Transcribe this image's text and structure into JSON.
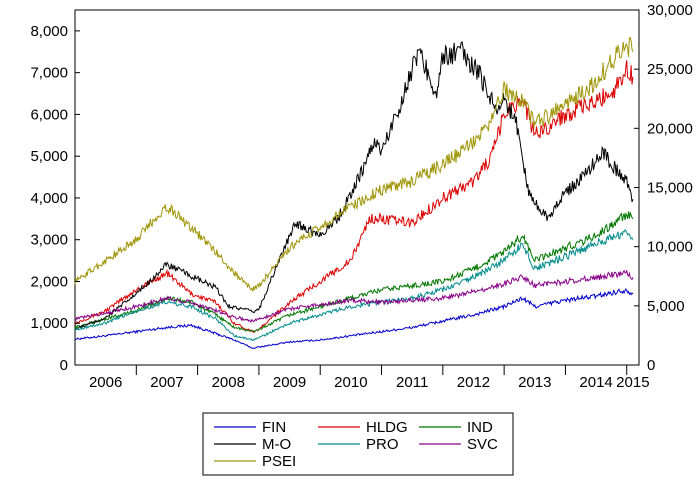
{
  "chart_data": {
    "type": "line",
    "title": "",
    "xlabel": "",
    "ylabel": "",
    "x_range": [
      2006.0,
      2015.2
    ],
    "x_ticks": [
      "2006",
      "2007",
      "2008",
      "2009",
      "2010",
      "2011",
      "2012",
      "2013",
      "2014",
      "2015"
    ],
    "left_axis": {
      "ylim": [
        0,
        8500
      ],
      "ticks": [
        0,
        1000,
        2000,
        3000,
        4000,
        5000,
        6000,
        7000,
        8000
      ],
      "tick_labels": [
        "0",
        "1,000",
        "2,000",
        "3,000",
        "4,000",
        "5,000",
        "6,000",
        "7,000",
        "8,000"
      ]
    },
    "right_axis": {
      "ylim": [
        0,
        30000
      ],
      "ticks": [
        0,
        5000,
        10000,
        15000,
        20000,
        25000,
        30000
      ],
      "tick_labels": [
        "0",
        "5,000",
        "10,000",
        "15,000",
        "20,000",
        "25,000",
        "30,000"
      ]
    },
    "legend": {
      "placement": "bottom-center",
      "columns": 3
    },
    "series": [
      {
        "name": "FIN",
        "color": "#0000cc",
        "axis": "left",
        "x": [
          2006.0,
          2006.5,
          2007.0,
          2007.5,
          2007.9,
          2008.3,
          2008.6,
          2008.9,
          2009.0,
          2009.5,
          2010.0,
          2010.5,
          2011.0,
          2011.5,
          2012.0,
          2012.5,
          2013.0,
          2013.3,
          2013.5,
          2014.0,
          2014.5,
          2015.0,
          2015.1
        ],
        "values": [
          620,
          700,
          800,
          900,
          950,
          750,
          600,
          400,
          430,
          550,
          600,
          700,
          800,
          900,
          1050,
          1200,
          1400,
          1600,
          1400,
          1550,
          1650,
          1800,
          1700
        ]
      },
      {
        "name": "HLDG",
        "color": "#dd0000",
        "axis": "left",
        "x": [
          2006.0,
          2006.5,
          2007.0,
          2007.5,
          2007.9,
          2008.3,
          2008.6,
          2008.9,
          2009.0,
          2009.5,
          2010.0,
          2010.5,
          2010.8,
          2011.0,
          2011.5,
          2012.0,
          2012.5,
          2012.8,
          2013.0,
          2013.3,
          2013.5,
          2014.0,
          2014.5,
          2014.8,
          2015.0,
          2015.1
        ],
        "values": [
          1000,
          1300,
          1800,
          2200,
          1700,
          1500,
          1000,
          800,
          850,
          1500,
          2000,
          2500,
          3500,
          3500,
          3400,
          4000,
          4400,
          5000,
          6000,
          6400,
          5500,
          6000,
          6300,
          6600,
          7100,
          6900
        ]
      },
      {
        "name": "IND",
        "color": "#007700",
        "axis": "left",
        "x": [
          2006.0,
          2006.5,
          2007.0,
          2007.5,
          2007.9,
          2008.3,
          2008.6,
          2008.9,
          2009.0,
          2009.5,
          2010.0,
          2010.5,
          2011.0,
          2011.5,
          2012.0,
          2012.5,
          2013.0,
          2013.3,
          2013.5,
          2014.0,
          2014.5,
          2015.0,
          2015.1
        ],
        "values": [
          900,
          1100,
          1300,
          1600,
          1500,
          1200,
          900,
          800,
          850,
          1200,
          1400,
          1600,
          1800,
          1900,
          2000,
          2300,
          2700,
          3100,
          2500,
          2800,
          3100,
          3600,
          3500
        ]
      },
      {
        "name": "M-O",
        "color": "#000000",
        "axis": "right",
        "x": [
          2006.0,
          2006.5,
          2007.0,
          2007.3,
          2007.5,
          2007.9,
          2008.3,
          2008.5,
          2008.9,
          2009.0,
          2009.3,
          2009.6,
          2010.0,
          2010.3,
          2010.6,
          2010.9,
          2011.0,
          2011.3,
          2011.6,
          2011.9,
          2012.0,
          2012.3,
          2012.6,
          2012.9,
          2013.0,
          2013.2,
          2013.4,
          2013.7,
          2014.0,
          2014.3,
          2014.6,
          2014.9,
          2015.0,
          2015.1
        ],
        "values": [
          3000,
          4000,
          6000,
          7500,
          8500,
          7500,
          6500,
          5000,
          4500,
          4700,
          8500,
          12000,
          11000,
          12500,
          15500,
          19000,
          18000,
          22000,
          26500,
          23000,
          26000,
          26500,
          24500,
          21500,
          22500,
          20500,
          14500,
          12500,
          14500,
          16000,
          18000,
          16000,
          15500,
          14000
        ]
      },
      {
        "name": "PRO",
        "color": "#008b8b",
        "axis": "left",
        "x": [
          2006.0,
          2006.5,
          2007.0,
          2007.5,
          2007.9,
          2008.3,
          2008.6,
          2008.9,
          2009.0,
          2009.5,
          2010.0,
          2010.5,
          2011.0,
          2011.5,
          2012.0,
          2012.5,
          2013.0,
          2013.3,
          2013.5,
          2014.0,
          2014.5,
          2015.0,
          2015.1
        ],
        "values": [
          850,
          1000,
          1300,
          1500,
          1400,
          1100,
          700,
          600,
          650,
          1000,
          1200,
          1400,
          1500,
          1600,
          1800,
          2100,
          2500,
          2900,
          2300,
          2600,
          2900,
          3200,
          3000
        ]
      },
      {
        "name": "SVC",
        "color": "#880088",
        "axis": "left",
        "x": [
          2006.0,
          2006.5,
          2007.0,
          2007.5,
          2007.9,
          2008.3,
          2008.6,
          2008.9,
          2009.0,
          2009.5,
          2010.0,
          2010.5,
          2011.0,
          2011.5,
          2012.0,
          2012.5,
          2013.0,
          2013.3,
          2013.5,
          2014.0,
          2014.5,
          2015.0,
          2015.1
        ],
        "values": [
          1100,
          1250,
          1400,
          1600,
          1500,
          1300,
          1150,
          1050,
          1100,
          1350,
          1450,
          1550,
          1500,
          1550,
          1600,
          1750,
          1950,
          2100,
          1900,
          2000,
          2100,
          2200,
          2100
        ]
      },
      {
        "name": "PSEI",
        "color": "#a0960a",
        "axis": "left",
        "x": [
          2006.0,
          2006.5,
          2007.0,
          2007.3,
          2007.5,
          2007.9,
          2008.3,
          2008.6,
          2008.9,
          2009.0,
          2009.5,
          2010.0,
          2010.5,
          2011.0,
          2011.5,
          2012.0,
          2012.5,
          2012.8,
          2013.0,
          2013.3,
          2013.5,
          2014.0,
          2014.5,
          2015.0,
          2015.1
        ],
        "values": [
          2000,
          2500,
          3000,
          3500,
          3800,
          3300,
          2700,
          2200,
          1800,
          1900,
          2800,
          3300,
          3800,
          4200,
          4400,
          4800,
          5300,
          5900,
          6600,
          6300,
          5800,
          6200,
          6800,
          7700,
          7500
        ]
      }
    ]
  }
}
